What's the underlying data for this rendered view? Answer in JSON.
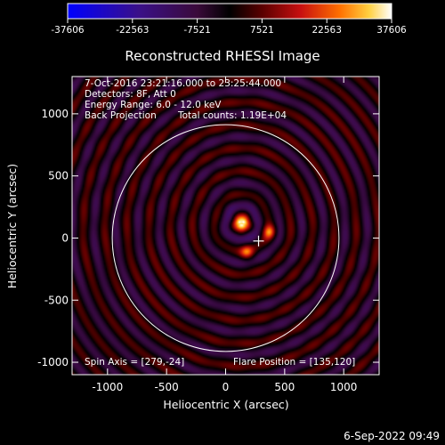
{
  "chart_data": {
    "type": "heatmap",
    "title": "Reconstructed RHESSI Image",
    "xlabel": "Heliocentric X (arcsec)",
    "ylabel": "Heliocentric Y (arcsec)",
    "xlim": [
      -1300,
      1300
    ],
    "ylim": [
      -1100,
      1300
    ],
    "xticks": [
      -1000,
      -500,
      0,
      500,
      1000
    ],
    "yticks": [
      -1000,
      -500,
      0,
      500,
      1000
    ],
    "colorbar": {
      "min": -37606,
      "max": 37606,
      "ticks": [
        "-37606",
        "-22563",
        "-7521",
        "7521",
        "22563",
        "37606"
      ]
    },
    "annotations": {
      "line1": "7-Oct-2016 23:21:16.000 to 23:25:44.000",
      "line2": "Detectors: 8F, Att 0",
      "line3": "Energy Range: 6.0 - 12.0 keV",
      "line4a": "Back Projection",
      "line4b": "Total counts: 1.19E+04",
      "spin_axis": "Spin Axis = [279,-24]",
      "flare_position": "Flare Position = [135,120]"
    },
    "solar_disk": {
      "center": [
        0,
        0
      ],
      "radius": 960
    },
    "marker": {
      "symbol": "plus",
      "x": 279,
      "y": -24
    },
    "sources": [
      {
        "x": 135,
        "y": 120,
        "intensity": 1.0
      },
      {
        "x": 370,
        "y": 50,
        "intensity": 0.55
      },
      {
        "x": 180,
        "y": -110,
        "intensity": 0.5
      }
    ]
  },
  "footer": {
    "timestamp": "6-Sep-2022 09:49"
  }
}
